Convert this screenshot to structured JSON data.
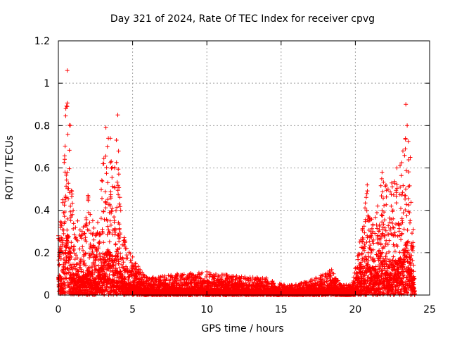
{
  "chart_data": {
    "type": "scatter",
    "title": "Day 321 of 2024, Rate Of TEC Index for receiver cpvg",
    "xlabel": "GPS time / hours",
    "ylabel": "ROTI / TECUs",
    "xlim": [
      0,
      25
    ],
    "ylim": [
      0,
      1.2
    ],
    "xticks": [
      0,
      5,
      10,
      15,
      20,
      25
    ],
    "yticks": [
      0,
      0.2,
      0.4,
      0.6,
      0.8,
      1,
      1.2
    ],
    "xtick_labels": [
      "0",
      "5",
      "10",
      "15",
      "20",
      "25"
    ],
    "ytick_labels": [
      "0",
      "0.2",
      "0.4",
      "0.6",
      "0.8",
      "1",
      "1.2"
    ],
    "grid": true,
    "marker": "+",
    "series_color": "#ff0000",
    "series": [
      {
        "name": "ROTI",
        "envelope": [
          {
            "x": 0.0,
            "y": 0.28
          },
          {
            "x": 0.3,
            "y": 0.45
          },
          {
            "x": 0.5,
            "y": 0.88
          },
          {
            "x": 0.6,
            "y": 1.06
          },
          {
            "x": 0.8,
            "y": 0.8
          },
          {
            "x": 1.0,
            "y": 0.4
          },
          {
            "x": 1.3,
            "y": 0.35
          },
          {
            "x": 1.6,
            "y": 0.3
          },
          {
            "x": 2.0,
            "y": 0.47
          },
          {
            "x": 2.5,
            "y": 0.28
          },
          {
            "x": 3.0,
            "y": 0.62
          },
          {
            "x": 3.2,
            "y": 0.79
          },
          {
            "x": 3.5,
            "y": 0.74
          },
          {
            "x": 3.8,
            "y": 0.6
          },
          {
            "x": 4.0,
            "y": 0.85
          },
          {
            "x": 4.2,
            "y": 0.4
          },
          {
            "x": 4.6,
            "y": 0.22
          },
          {
            "x": 5.0,
            "y": 0.18
          },
          {
            "x": 5.5,
            "y": 0.12
          },
          {
            "x": 6.0,
            "y": 0.08
          },
          {
            "x": 8.0,
            "y": 0.1
          },
          {
            "x": 10.0,
            "y": 0.11
          },
          {
            "x": 12.0,
            "y": 0.09
          },
          {
            "x": 14.0,
            "y": 0.08
          },
          {
            "x": 15.0,
            "y": 0.05
          },
          {
            "x": 16.0,
            "y": 0.05
          },
          {
            "x": 17.0,
            "y": 0.07
          },
          {
            "x": 18.4,
            "y": 0.12
          },
          {
            "x": 19.0,
            "y": 0.05
          },
          {
            "x": 19.8,
            "y": 0.05
          },
          {
            "x": 20.3,
            "y": 0.25
          },
          {
            "x": 20.8,
            "y": 0.52
          },
          {
            "x": 21.5,
            "y": 0.42
          },
          {
            "x": 21.8,
            "y": 0.58
          },
          {
            "x": 22.2,
            "y": 0.5
          },
          {
            "x": 22.8,
            "y": 0.6
          },
          {
            "x": 23.2,
            "y": 0.68
          },
          {
            "x": 23.4,
            "y": 0.9
          },
          {
            "x": 23.7,
            "y": 0.65
          },
          {
            "x": 23.9,
            "y": 0.31
          },
          {
            "x": 24.0,
            "y": 0.02
          }
        ]
      }
    ]
  }
}
